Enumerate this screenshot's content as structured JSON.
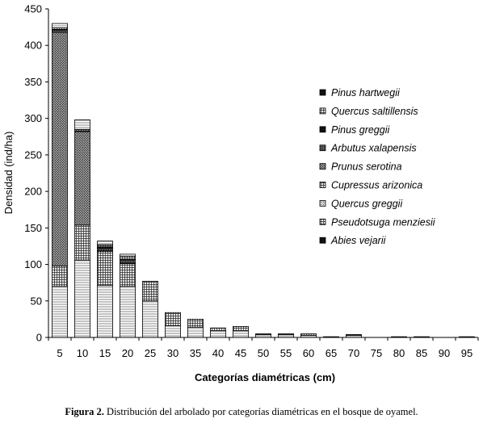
{
  "chart_data": {
    "type": "bar",
    "stacked": true,
    "xlabel": "Categorías diamétricas (cm)",
    "ylabel": "Densidad (ind/ha)",
    "ylim": [
      0,
      450
    ],
    "yticks": [
      0,
      50,
      100,
      150,
      200,
      250,
      300,
      350,
      400,
      450
    ],
    "grid": false,
    "legend_position": "right",
    "categories": [
      "5",
      "10",
      "15",
      "20",
      "25",
      "30",
      "35",
      "40",
      "45",
      "50",
      "55",
      "60",
      "65",
      "70",
      "75",
      "80",
      "85",
      "90",
      "95"
    ],
    "series": [
      {
        "name": "Abies vejarii",
        "pattern": "hlines",
        "values": [
          70,
          106,
          71,
          70,
          50,
          16,
          14,
          9,
          9,
          4,
          4,
          3,
          1,
          3,
          0,
          1,
          1,
          0,
          1
        ]
      },
      {
        "name": "Pseudotsuga menziesii",
        "pattern": "grid",
        "values": [
          28,
          48,
          47,
          31,
          27,
          18,
          11,
          4,
          6,
          1,
          1,
          2,
          0,
          1,
          0,
          0,
          0,
          0,
          0
        ]
      },
      {
        "name": "Quercus greggii",
        "pattern": "dots",
        "values": [
          0,
          0,
          1,
          0,
          0,
          0,
          0,
          0,
          0,
          0,
          0,
          0,
          0,
          0,
          0,
          0,
          0,
          0,
          0
        ]
      },
      {
        "name": "Cupressus arizonica",
        "pattern": "grid",
        "values": [
          0,
          0,
          0,
          1,
          0,
          0,
          0,
          0,
          0,
          0,
          0,
          0,
          0,
          0,
          0,
          0,
          0,
          0,
          0
        ]
      },
      {
        "name": "Prunus serotina",
        "pattern": "diag",
        "values": [
          320,
          128,
          2,
          0,
          0,
          0,
          0,
          0,
          0,
          0,
          0,
          0,
          0,
          0,
          0,
          0,
          0,
          0,
          0
        ]
      },
      {
        "name": "Arbutus xalapensis",
        "pattern": "dense",
        "values": [
          3,
          1,
          2,
          4,
          0,
          0,
          0,
          0,
          0,
          0,
          0,
          0,
          0,
          0,
          0,
          0,
          0,
          0,
          0
        ]
      },
      {
        "name": "Pinus greggii",
        "pattern": "black",
        "values": [
          1,
          0,
          1,
          1,
          0,
          0,
          0,
          0,
          0,
          0,
          0,
          0,
          0,
          0,
          0,
          0,
          0,
          0,
          0
        ]
      },
      {
        "name": "Quercus saltillensis",
        "pattern": "grid",
        "values": [
          2,
          2,
          3,
          4,
          0,
          0,
          0,
          0,
          0,
          0,
          0,
          0,
          0,
          0,
          0,
          0,
          0,
          0,
          0
        ]
      },
      {
        "name": "Pinus hartwegii",
        "pattern": "hlines",
        "values": [
          6,
          13,
          5,
          3,
          0,
          0,
          0,
          0,
          0,
          0,
          0,
          0,
          0,
          0,
          0,
          0,
          0,
          0,
          0
        ]
      }
    ]
  },
  "caption": {
    "label": "Figura 2.",
    "text": "Distribución del arbolado por categorías diamétricas en el bosque de oyamel."
  }
}
